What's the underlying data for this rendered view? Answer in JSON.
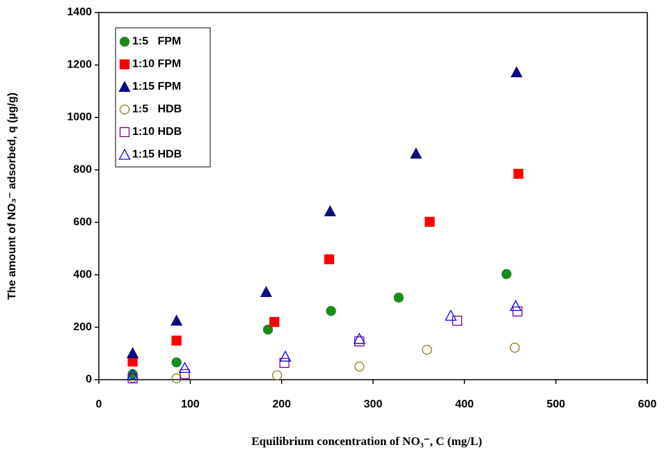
{
  "chart_data": {
    "type": "scatter",
    "x_label": "Equilibrium concentration of NO₃⁻, C (mg/L)",
    "y_label": "The amount of NO₃⁻ adsorbed, q (µg/g)",
    "xlim": [
      0,
      600
    ],
    "xticks": [
      0,
      100,
      200,
      300,
      400,
      500,
      600
    ],
    "ylim": [
      0,
      1400
    ],
    "yticks": [
      0,
      200,
      400,
      600,
      800,
      1000,
      1200,
      1400
    ],
    "legend": "upper left",
    "series": [
      {
        "name": "1:5   FPM",
        "color": "#1a8a1a",
        "marker": "circle",
        "filled": true,
        "x": [
          37,
          85,
          185,
          254,
          328,
          446
        ],
        "values": [
          21,
          66,
          191,
          262,
          313,
          403
        ]
      },
      {
        "name": "1:10 FPM",
        "color": "#ff0000",
        "marker": "square",
        "filled": true,
        "x": [
          37,
          85,
          192,
          252,
          362,
          459
        ],
        "values": [
          69,
          149,
          220,
          459,
          602,
          785
        ]
      },
      {
        "name": "1:15 FPM",
        "color": "#0a0a80",
        "marker": "triangle",
        "filled": true,
        "x": [
          37,
          85,
          183,
          253,
          347,
          457
        ],
        "values": [
          101,
          225,
          334,
          642,
          862,
          1172
        ]
      },
      {
        "name": "1:5   HDB",
        "color": "#8b7a1a",
        "marker": "circle",
        "filled": false,
        "x": [
          37,
          85,
          195,
          285,
          359,
          455
        ],
        "values": [
          8,
          5,
          17,
          50,
          114,
          122
        ]
      },
      {
        "name": "1:10 HDB",
        "color": "#800080",
        "marker": "square",
        "filled": false,
        "x": [
          37,
          94,
          203,
          285,
          392,
          458
        ],
        "values": [
          5,
          21,
          64,
          146,
          225,
          260
        ]
      },
      {
        "name": "1:15 HDB",
        "color": "#0000ff",
        "marker": "triangle",
        "filled": false,
        "x": [
          37,
          94,
          204,
          285,
          385,
          456
        ],
        "values": [
          19,
          45,
          88,
          156,
          244,
          281
        ]
      }
    ]
  }
}
